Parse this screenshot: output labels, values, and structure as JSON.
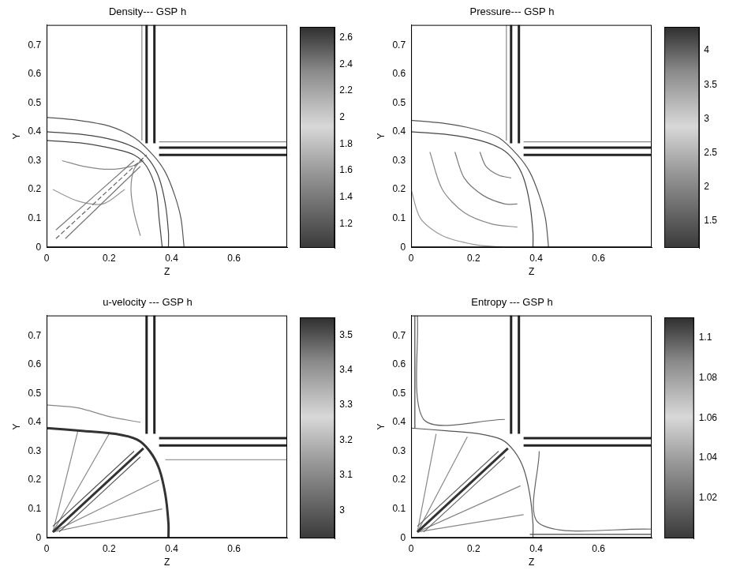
{
  "chart_data": [
    {
      "type": "contour",
      "title": "Density--- GSP h",
      "x_label": "Z",
      "y_label": "Y",
      "xlim": [
        0,
        0.77
      ],
      "xticks": [
        0,
        0.2,
        0.4,
        0.6
      ],
      "ylim": [
        0,
        0.77
      ],
      "yticks": [
        0,
        0.1,
        0.2,
        0.3,
        0.4,
        0.5,
        0.6,
        0.7
      ],
      "grid": false,
      "colorbar_range": [
        1.02,
        2.68
      ],
      "colorbar_ticks": [
        1.2,
        1.4,
        1.6,
        1.8,
        2,
        2.2,
        2.4,
        2.6
      ],
      "series": [
        {
          "color": "#222222",
          "line_style": "solid",
          "x": [
            0.32,
            0.32
          ],
          "values": [
            0.36,
            0.77
          ]
        },
        {
          "color": "#222222",
          "line_style": "solid",
          "x": [
            0.345,
            0.345
          ],
          "values": [
            0.36,
            0.77
          ]
        },
        {
          "color": "#222222",
          "line_style": "solid",
          "x": [
            0.36,
            0.77
          ],
          "values": [
            0.32,
            0.32
          ]
        },
        {
          "color": "#222222",
          "line_style": "solid",
          "x": [
            0.36,
            0.77
          ],
          "values": [
            0.345,
            0.345
          ]
        },
        {
          "color": "#888888",
          "line_style": "solid",
          "x": [
            0.305,
            0.305
          ],
          "values": [
            0.37,
            0.77
          ]
        },
        {
          "color": "#888888",
          "line_style": "solid",
          "x": [
            0.36,
            0.77
          ],
          "values": [
            0.365,
            0.365
          ]
        },
        {
          "color": "#555555",
          "line_style": "solid",
          "x": [
            0,
            0.1,
            0.2,
            0.28,
            0.34,
            0.38,
            0.41,
            0.43,
            0.44
          ],
          "values": [
            0.45,
            0.44,
            0.42,
            0.38,
            0.32,
            0.26,
            0.18,
            0.1,
            0
          ]
        },
        {
          "color": "#444444",
          "line_style": "solid",
          "x": [
            0,
            0.12,
            0.22,
            0.29,
            0.33,
            0.36,
            0.38,
            0.39,
            0.39
          ],
          "values": [
            0.4,
            0.39,
            0.37,
            0.34,
            0.3,
            0.24,
            0.15,
            0.05,
            0
          ]
        },
        {
          "color": "#444444",
          "line_style": "solid",
          "x": [
            0,
            0.12,
            0.22,
            0.28,
            0.32,
            0.35,
            0.36,
            0.37
          ],
          "values": [
            0.37,
            0.36,
            0.34,
            0.32,
            0.28,
            0.2,
            0.1,
            0
          ]
        },
        {
          "color": "#666666",
          "line_style": "dashed",
          "x": [
            0.03,
            0.32
          ],
          "values": [
            0.03,
            0.32
          ]
        },
        {
          "color": "#777777",
          "line_style": "solid",
          "x": [
            0.06,
            0.3
          ],
          "values": [
            0.03,
            0.28
          ]
        },
        {
          "color": "#777777",
          "line_style": "solid",
          "x": [
            0.03,
            0.28
          ],
          "values": [
            0.06,
            0.3
          ]
        },
        {
          "color": "#888888",
          "line_style": "solid",
          "x": [
            0.05,
            0.12,
            0.2,
            0.27,
            0.31
          ],
          "values": [
            0.3,
            0.28,
            0.27,
            0.28,
            0.3
          ]
        },
        {
          "color": "#888888",
          "line_style": "solid",
          "x": [
            0.3,
            0.28,
            0.27,
            0.28,
            0.31
          ],
          "values": [
            0.04,
            0.12,
            0.2,
            0.27,
            0.31
          ]
        },
        {
          "color": "#999999",
          "line_style": "solid",
          "x": [
            0.02,
            0.1,
            0.18,
            0.25
          ],
          "values": [
            0.2,
            0.16,
            0.15,
            0.2
          ]
        }
      ]
    },
    {
      "type": "contour",
      "title": "Pressure--- GSP h",
      "x_label": "Z",
      "y_label": "Y",
      "xlim": [
        0,
        0.77
      ],
      "xticks": [
        0,
        0.2,
        0.4,
        0.6
      ],
      "ylim": [
        0,
        0.77
      ],
      "yticks": [
        0,
        0.1,
        0.2,
        0.3,
        0.4,
        0.5,
        0.6,
        0.7
      ],
      "grid": false,
      "colorbar_range": [
        1.1,
        4.35
      ],
      "colorbar_ticks": [
        1.5,
        2,
        2.5,
        3,
        3.5,
        4
      ],
      "series": [
        {
          "color": "#222222",
          "line_style": "solid",
          "x": [
            0.32,
            0.32
          ],
          "values": [
            0.36,
            0.77
          ]
        },
        {
          "color": "#222222",
          "line_style": "solid",
          "x": [
            0.345,
            0.345
          ],
          "values": [
            0.36,
            0.77
          ]
        },
        {
          "color": "#222222",
          "line_style": "solid",
          "x": [
            0.36,
            0.77
          ],
          "values": [
            0.32,
            0.32
          ]
        },
        {
          "color": "#222222",
          "line_style": "solid",
          "x": [
            0.36,
            0.77
          ],
          "values": [
            0.345,
            0.345
          ]
        },
        {
          "color": "#888888",
          "line_style": "solid",
          "x": [
            0.305,
            0.305
          ],
          "values": [
            0.37,
            0.77
          ]
        },
        {
          "color": "#888888",
          "line_style": "solid",
          "x": [
            0.36,
            0.77
          ],
          "values": [
            0.365,
            0.365
          ]
        },
        {
          "color": "#555555",
          "line_style": "solid",
          "x": [
            0,
            0.1,
            0.2,
            0.28,
            0.34,
            0.38,
            0.41,
            0.43,
            0.44
          ],
          "values": [
            0.44,
            0.43,
            0.41,
            0.38,
            0.32,
            0.26,
            0.18,
            0.1,
            0
          ]
        },
        {
          "color": "#444444",
          "line_style": "solid",
          "x": [
            0,
            0.12,
            0.22,
            0.29,
            0.33,
            0.36,
            0.38,
            0.39,
            0.39
          ],
          "values": [
            0.4,
            0.39,
            0.37,
            0.34,
            0.3,
            0.24,
            0.15,
            0.05,
            0
          ]
        },
        {
          "color": "#777777",
          "line_style": "solid",
          "x": [
            0.22,
            0.24,
            0.28,
            0.32
          ],
          "values": [
            0.33,
            0.28,
            0.25,
            0.24
          ]
        },
        {
          "color": "#777777",
          "line_style": "solid",
          "x": [
            0.14,
            0.17,
            0.23,
            0.3,
            0.34
          ],
          "values": [
            0.33,
            0.24,
            0.18,
            0.15,
            0.15
          ]
        },
        {
          "color": "#888888",
          "line_style": "solid",
          "x": [
            0.06,
            0.1,
            0.17,
            0.26,
            0.34
          ],
          "values": [
            0.33,
            0.2,
            0.12,
            0.08,
            0.07
          ]
        },
        {
          "color": "#999999",
          "line_style": "solid",
          "x": [
            0,
            0.03,
            0.1,
            0.2,
            0.3
          ],
          "values": [
            0.2,
            0.1,
            0.04,
            0.01,
            0
          ]
        }
      ]
    },
    {
      "type": "contour",
      "title": "u-velocity --- GSP h",
      "x_label": "Z",
      "y_label": "Y",
      "xlim": [
        0,
        0.77
      ],
      "xticks": [
        0,
        0.2,
        0.4,
        0.6
      ],
      "ylim": [
        0,
        0.77
      ],
      "yticks": [
        0,
        0.1,
        0.2,
        0.3,
        0.4,
        0.5,
        0.6,
        0.7
      ],
      "grid": false,
      "colorbar_range": [
        2.92,
        3.55
      ],
      "colorbar_ticks": [
        3,
        3.1,
        3.2,
        3.3,
        3.4,
        3.5
      ],
      "series": [
        {
          "color": "#222222",
          "line_style": "solid",
          "x": [
            0.32,
            0.32
          ],
          "values": [
            0.36,
            0.77
          ]
        },
        {
          "color": "#222222",
          "line_style": "solid",
          "x": [
            0.345,
            0.345
          ],
          "values": [
            0.36,
            0.77
          ]
        },
        {
          "color": "#222222",
          "line_style": "solid",
          "x": [
            0.36,
            0.77
          ],
          "values": [
            0.32,
            0.32
          ]
        },
        {
          "color": "#222222",
          "line_style": "solid",
          "x": [
            0.36,
            0.77
          ],
          "values": [
            0.345,
            0.345
          ]
        },
        {
          "color": "#999999",
          "line_style": "solid",
          "x": [
            0.38,
            0.77
          ],
          "values": [
            0.27,
            0.27
          ]
        },
        {
          "color": "#333333",
          "line_style": "solid",
          "x": [
            0,
            0.12,
            0.22,
            0.29,
            0.33,
            0.36,
            0.38,
            0.39,
            0.39
          ],
          "values": [
            0.38,
            0.37,
            0.36,
            0.34,
            0.3,
            0.24,
            0.15,
            0.05,
            0
          ]
        },
        {
          "color": "#888888",
          "line_style": "solid",
          "x": [
            0,
            0.1,
            0.2,
            0.3
          ],
          "values": [
            0.46,
            0.45,
            0.42,
            0.4
          ]
        },
        {
          "color": "#333333",
          "line_style": "solid",
          "x": [
            0.02,
            0.31
          ],
          "values": [
            0.02,
            0.31
          ]
        },
        {
          "color": "#555555",
          "line_style": "solid",
          "x": [
            0.04,
            0.3
          ],
          "values": [
            0.02,
            0.28
          ]
        },
        {
          "color": "#555555",
          "line_style": "solid",
          "x": [
            0.02,
            0.28
          ],
          "values": [
            0.04,
            0.3
          ]
        },
        {
          "color": "#888888",
          "line_style": "solid",
          "x": [
            0.02,
            0.1
          ],
          "values": [
            0.02,
            0.37
          ]
        },
        {
          "color": "#888888",
          "line_style": "solid",
          "x": [
            0.02,
            0.2
          ],
          "values": [
            0.02,
            0.36
          ]
        },
        {
          "color": "#888888",
          "line_style": "solid",
          "x": [
            0.02,
            0.36
          ],
          "values": [
            0.02,
            0.2
          ]
        },
        {
          "color": "#888888",
          "line_style": "solid",
          "x": [
            0.02,
            0.37
          ],
          "values": [
            0.02,
            0.1
          ]
        }
      ]
    },
    {
      "type": "contour",
      "title": "Entropy --- GSP h",
      "x_label": "Z",
      "y_label": "Y",
      "xlim": [
        0,
        0.77
      ],
      "xticks": [
        0,
        0.2,
        0.4,
        0.6
      ],
      "ylim": [
        0,
        0.77
      ],
      "yticks": [
        0,
        0.1,
        0.2,
        0.3,
        0.4,
        0.5,
        0.6,
        0.7
      ],
      "grid": false,
      "colorbar_range": [
        1.0,
        1.11
      ],
      "colorbar_ticks": [
        1.02,
        1.04,
        1.06,
        1.08,
        1.1
      ],
      "series": [
        {
          "color": "#222222",
          "line_style": "solid",
          "x": [
            0.32,
            0.32
          ],
          "values": [
            0.36,
            0.77
          ]
        },
        {
          "color": "#222222",
          "line_style": "solid",
          "x": [
            0.345,
            0.345
          ],
          "values": [
            0.36,
            0.77
          ]
        },
        {
          "color": "#222222",
          "line_style": "solid",
          "x": [
            0.36,
            0.77
          ],
          "values": [
            0.32,
            0.32
          ]
        },
        {
          "color": "#222222",
          "line_style": "solid",
          "x": [
            0.36,
            0.77
          ],
          "values": [
            0.345,
            0.345
          ]
        },
        {
          "color": "#444444",
          "line_style": "solid",
          "x": [
            0.012,
            0.012
          ],
          "values": [
            0.38,
            0.77
          ]
        },
        {
          "color": "#444444",
          "line_style": "solid",
          "x": [
            0.38,
            0.77
          ],
          "values": [
            0.012,
            0.012
          ]
        },
        {
          "color": "#666666",
          "line_style": "solid",
          "x": [
            0.02,
            0.04,
            0.3
          ],
          "values": [
            0.77,
            0.41,
            0.41
          ]
        },
        {
          "color": "#666666",
          "line_style": "solid",
          "x": [
            0.77,
            0.41,
            0.41
          ],
          "values": [
            0.03,
            0.05,
            0.3
          ]
        },
        {
          "color": "#555555",
          "line_style": "solid",
          "x": [
            0,
            0.12,
            0.22,
            0.29,
            0.33,
            0.36,
            0.38,
            0.39,
            0.39
          ],
          "values": [
            0.38,
            0.37,
            0.36,
            0.34,
            0.3,
            0.24,
            0.15,
            0.05,
            0
          ]
        },
        {
          "color": "#333333",
          "line_style": "solid",
          "x": [
            0.02,
            0.31
          ],
          "values": [
            0.02,
            0.31
          ]
        },
        {
          "color": "#666666",
          "line_style": "solid",
          "x": [
            0.04,
            0.3
          ],
          "values": [
            0.02,
            0.28
          ]
        },
        {
          "color": "#666666",
          "line_style": "solid",
          "x": [
            0.02,
            0.28
          ],
          "values": [
            0.04,
            0.3
          ]
        },
        {
          "color": "#888888",
          "line_style": "solid",
          "x": [
            0.02,
            0.08
          ],
          "values": [
            0.02,
            0.36
          ]
        },
        {
          "color": "#888888",
          "line_style": "solid",
          "x": [
            0.02,
            0.18
          ],
          "values": [
            0.02,
            0.35
          ]
        },
        {
          "color": "#888888",
          "line_style": "solid",
          "x": [
            0.02,
            0.35
          ],
          "values": [
            0.02,
            0.18
          ]
        },
        {
          "color": "#888888",
          "line_style": "solid",
          "x": [
            0.02,
            0.36
          ],
          "values": [
            0.02,
            0.08
          ]
        }
      ]
    }
  ]
}
